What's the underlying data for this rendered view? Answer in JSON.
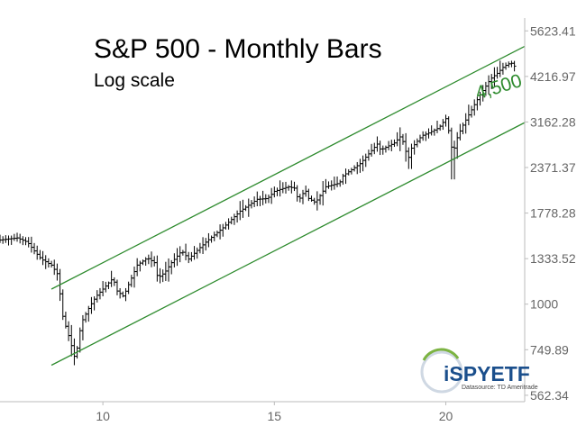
{
  "chart_data": {
    "type": "ohlc",
    "title": "S&P 500 - Monthly Bars",
    "subtitle": "Log scale",
    "scale": "log",
    "x_ticks": [
      "10",
      "15",
      "20"
    ],
    "x_tick_values": [
      2010,
      2015,
      2020
    ],
    "y_ticks": [
      "562.34",
      "749.89",
      "1000",
      "1333.52",
      "1778.28",
      "2371.37",
      "3162.28",
      "4216.97",
      "5623.41"
    ],
    "xlim": [
      2007.0,
      2022.3
    ],
    "ylim": [
      540,
      6100
    ],
    "price_path": [
      [
        2007.0,
        1500
      ],
      [
        2007.5,
        1520
      ],
      [
        2007.8,
        1480
      ],
      [
        2008.0,
        1400
      ],
      [
        2008.2,
        1330
      ],
      [
        2008.5,
        1280
      ],
      [
        2008.7,
        1200
      ],
      [
        2008.8,
        950
      ],
      [
        2008.9,
        880
      ],
      [
        2009.0,
        820
      ],
      [
        2009.1,
        760
      ],
      [
        2009.2,
        700
      ],
      [
        2009.3,
        820
      ],
      [
        2009.4,
        900
      ],
      [
        2009.6,
        980
      ],
      [
        2009.8,
        1050
      ],
      [
        2010.0,
        1100
      ],
      [
        2010.3,
        1180
      ],
      [
        2010.4,
        1090
      ],
      [
        2010.6,
        1050
      ],
      [
        2010.8,
        1160
      ],
      [
        2011.0,
        1280
      ],
      [
        2011.3,
        1340
      ],
      [
        2011.5,
        1300
      ],
      [
        2011.6,
        1180
      ],
      [
        2011.8,
        1220
      ],
      [
        2012.0,
        1300
      ],
      [
        2012.3,
        1400
      ],
      [
        2012.5,
        1330
      ],
      [
        2012.8,
        1420
      ],
      [
        2013.0,
        1480
      ],
      [
        2013.5,
        1620
      ],
      [
        2014.0,
        1800
      ],
      [
        2014.5,
        1940
      ],
      [
        2014.8,
        1950
      ],
      [
        2015.0,
        2040
      ],
      [
        2015.4,
        2100
      ],
      [
        2015.6,
        2080
      ],
      [
        2015.7,
        1920
      ],
      [
        2015.9,
        2060
      ],
      [
        2016.0,
        1950
      ],
      [
        2016.2,
        1900
      ],
      [
        2016.5,
        2100
      ],
      [
        2016.9,
        2150
      ],
      [
        2017.0,
        2250
      ],
      [
        2017.5,
        2430
      ],
      [
        2018.0,
        2750
      ],
      [
        2018.1,
        2650
      ],
      [
        2018.5,
        2770
      ],
      [
        2018.7,
        2900
      ],
      [
        2018.9,
        2500
      ],
      [
        2019.0,
        2680
      ],
      [
        2019.3,
        2900
      ],
      [
        2019.5,
        2950
      ],
      [
        2019.8,
        3050
      ],
      [
        2020.0,
        3230
      ],
      [
        2020.1,
        2950
      ],
      [
        2020.2,
        2580
      ],
      [
        2020.35,
        2900
      ],
      [
        2020.5,
        3100
      ],
      [
        2020.7,
        3350
      ],
      [
        2020.9,
        3620
      ],
      [
        2021.0,
        3750
      ],
      [
        2021.3,
        4150
      ],
      [
        2021.5,
        4300
      ],
      [
        2021.7,
        4500
      ],
      [
        2021.9,
        4600
      ],
      [
        2022.0,
        4500
      ]
    ],
    "channel_upper": [
      [
        2008.5,
        1100
      ],
      [
        2022.3,
        5100
      ]
    ],
    "channel_lower": [
      [
        2008.5,
        680
      ],
      [
        2022.3,
        3150
      ]
    ],
    "level_label": "4,500",
    "level_value": 4500,
    "grid": false,
    "colors": {
      "bars": "#000000",
      "channel": "#2e8b2e",
      "level": "#2e8b2e",
      "axis": "#888888"
    }
  },
  "logo": {
    "brand": "iSPYETF",
    "caption": "Datasource: TD Ameritrade"
  }
}
